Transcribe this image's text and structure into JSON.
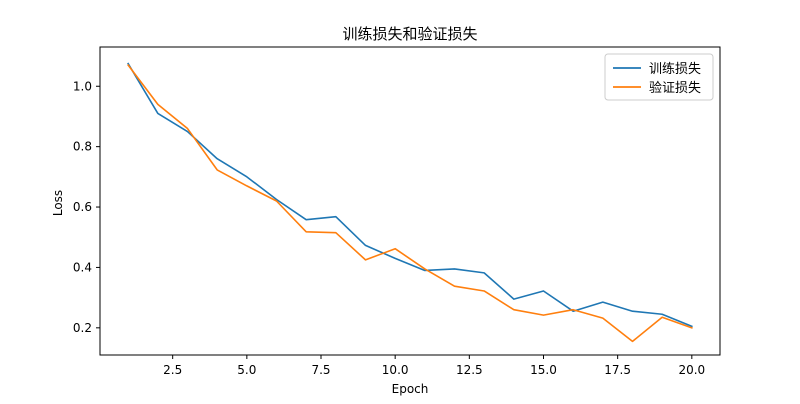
{
  "chart_data": {
    "type": "line",
    "title": "训练损失和验证损失",
    "xlabel": "Epoch",
    "ylabel": "Loss",
    "xlim": [
      0.05,
      20.95
    ],
    "ylim": [
      0.11,
      1.13
    ],
    "x_ticks": [
      2.5,
      5.0,
      7.5,
      10.0,
      12.5,
      15.0,
      17.5,
      20.0
    ],
    "x_tick_labels": [
      "2.5",
      "5.0",
      "7.5",
      "10.0",
      "12.5",
      "15.0",
      "17.5",
      "20.0"
    ],
    "y_ticks": [
      0.2,
      0.4,
      0.6,
      0.8,
      1.0
    ],
    "y_tick_labels": [
      "0.2",
      "0.4",
      "0.6",
      "0.8",
      "1.0"
    ],
    "grid": false,
    "legend_position": "top-right",
    "x": [
      1,
      2,
      3,
      4,
      5,
      6,
      7,
      8,
      9,
      10,
      11,
      12,
      13,
      14,
      15,
      16,
      17,
      18,
      19,
      20
    ],
    "series": [
      {
        "name": "训练损失",
        "color": "#1f77b4",
        "values": [
          1.075,
          0.91,
          0.85,
          0.76,
          0.7,
          0.625,
          0.558,
          0.568,
          0.473,
          0.43,
          0.39,
          0.395,
          0.382,
          0.295,
          0.322,
          0.255,
          0.285,
          0.255,
          0.245,
          0.205
        ]
      },
      {
        "name": "验证损失",
        "color": "#ff7f0e",
        "values": [
          1.07,
          0.94,
          0.86,
          0.723,
          0.67,
          0.62,
          0.518,
          0.515,
          0.425,
          0.462,
          0.395,
          0.338,
          0.322,
          0.26,
          0.242,
          0.26,
          0.232,
          0.155,
          0.235,
          0.2
        ]
      }
    ]
  }
}
